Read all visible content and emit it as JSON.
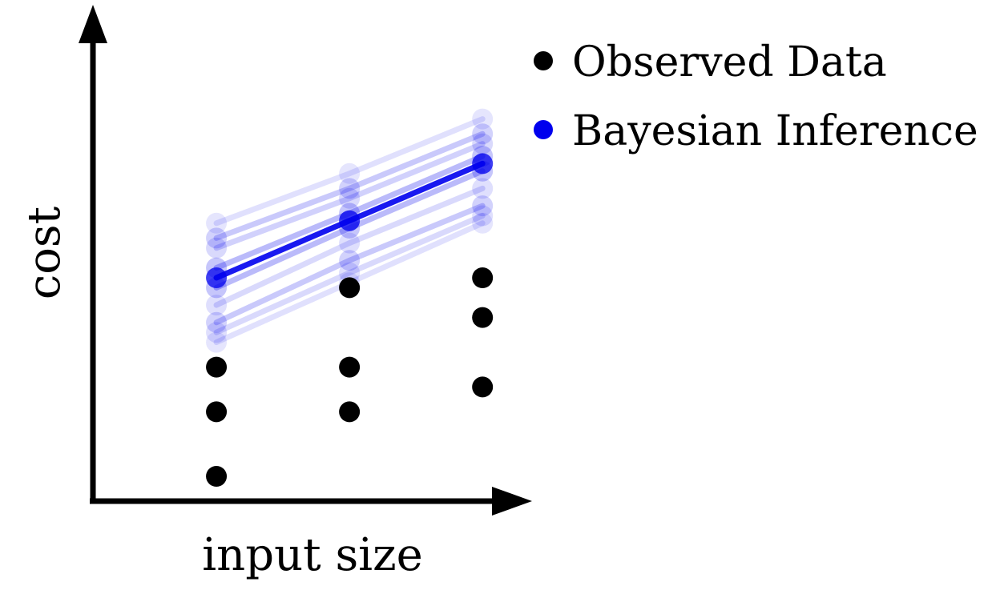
{
  "chart_data": {
    "type": "scatter",
    "title": "",
    "xlabel": "input size",
    "ylabel": "cost",
    "grid": false,
    "legend_position": "top-right",
    "xlim": [
      0,
      3.3
    ],
    "ylim": [
      0,
      10
    ],
    "colors": {
      "observed": "#000000",
      "inference": "#0000ee"
    },
    "legend": [
      {
        "label": "Observed Data",
        "color": "#000000"
      },
      {
        "label": "Bayesian Inference",
        "color": "#0000ee"
      }
    ],
    "series": [
      {
        "name": "Observed Data",
        "x": [
          1,
          1,
          1,
          2,
          2,
          2,
          3,
          3,
          3
        ],
        "y": [
          0.5,
          1.8,
          2.7,
          1.8,
          2.7,
          4.3,
          2.3,
          3.7,
          4.5
        ]
      }
    ],
    "inference_lines": [
      {
        "x": [
          1,
          2,
          3
        ],
        "y": [
          4.5,
          5.65,
          6.8
        ],
        "opacity": 1.0
      },
      {
        "x": [
          1,
          2,
          3
        ],
        "y": [
          4.3,
          5.5,
          6.65
        ],
        "opacity": 0.45
      },
      {
        "x": [
          1,
          2,
          3
        ],
        "y": [
          4.7,
          5.8,
          6.95
        ],
        "opacity": 0.45
      },
      {
        "x": [
          1,
          2,
          3
        ],
        "y": [
          5.3,
          6.3,
          7.4
        ],
        "opacity": 0.35
      },
      {
        "x": [
          1,
          2,
          3
        ],
        "y": [
          5.1,
          6.1,
          7.2
        ],
        "opacity": 0.3
      },
      {
        "x": [
          1,
          2,
          3
        ],
        "y": [
          3.6,
          4.85,
          5.95
        ],
        "opacity": 0.35
      },
      {
        "x": [
          1,
          2,
          3
        ],
        "y": [
          3.4,
          4.6,
          5.75
        ],
        "opacity": 0.25
      },
      {
        "x": [
          1,
          2,
          3
        ],
        "y": [
          3.2,
          4.4,
          5.6
        ],
        "opacity": 0.2
      },
      {
        "x": [
          1,
          2,
          3
        ],
        "y": [
          5.6,
          6.6,
          7.7
        ],
        "opacity": 0.2
      },
      {
        "x": [
          1,
          2,
          3
        ],
        "y": [
          3.95,
          5.2,
          6.3
        ],
        "opacity": 0.25
      }
    ]
  }
}
